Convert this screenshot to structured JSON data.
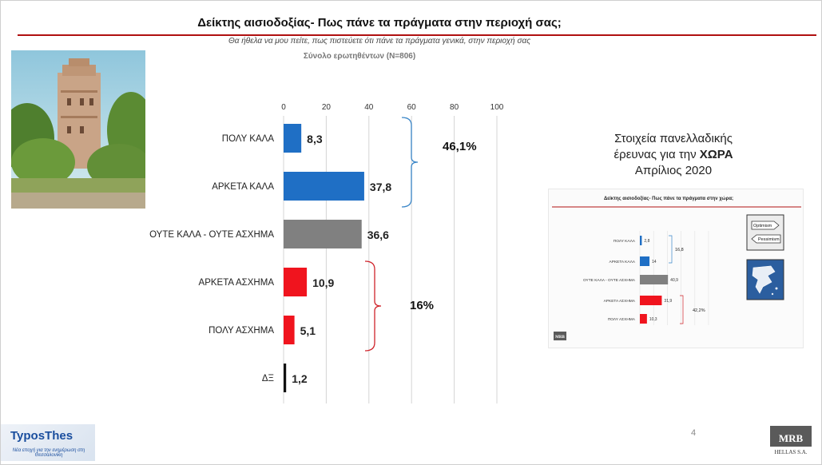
{
  "header": {
    "title": "Δείκτης αισιοδοξίας- Πως πάνε τα πράγματα στην περιοχή σας;",
    "subtitle": "Θα ήθελα να μου πείτε, πως πιστεύετε ότι πάνε τα πράγματα γενικά, στην περιοχή σας",
    "base": "Σύνολο ερωτηθέντων (Ν=806)"
  },
  "chart_data": {
    "type": "bar",
    "orientation": "horizontal",
    "xlim": [
      0,
      100
    ],
    "x_ticks": [
      0,
      20,
      40,
      60,
      80,
      100
    ],
    "categories": [
      "ΠΟΛΥ ΚΑΛΑ",
      "ΑΡΚΕΤΑ ΚΑΛΑ",
      "ΟΥΤΕ ΚΑΛΑ - ΟΥΤΕ ΑΣΧΗΜΑ",
      "ΑΡΚΕΤΑ ΑΣΧΗΜΑ",
      "ΠΟΛΥ ΑΣΧΗΜΑ",
      "ΔΞ"
    ],
    "values": [
      8.3,
      37.8,
      36.6,
      10.9,
      5.1,
      1.2
    ],
    "value_labels": [
      "8,3",
      "37,8",
      "36,6",
      "10,9",
      "5,1",
      "1,2"
    ],
    "colors": [
      "#1f6fc5",
      "#1f6fc5",
      "#808080",
      "#f0141e",
      "#f0141e",
      "#111111"
    ],
    "groups": [
      {
        "label": "46,1%",
        "from": 0,
        "to": 1,
        "color": "#3a86c8"
      },
      {
        "label": "16%",
        "from": 3,
        "to": 4,
        "color": "#d0242b"
      }
    ],
    "grid": true
  },
  "inset": {
    "title_line1": "Στοιχεία πανελλαδικής",
    "title_line2_prefix": "έρευνας για την ",
    "title_line2_bold": "ΧΩΡΑ",
    "title_line3": "Απρίλιος 2020",
    "chart": {
      "type": "bar",
      "orientation": "horizontal",
      "title": "Δείκτης αισιοδοξίας- Πως πάνε τα πράγματα στην χώρα;",
      "categories": [
        "ΠΟΛΥ ΚΑΛΑ",
        "ΑΡΚΕΤΑ ΚΑΛΑ",
        "ΟΥΤΕ ΚΑΛΑ - ΟΥΤΕ ΑΣΧΗΜΑ",
        "ΑΡΚΕΤΑ ΑΣΧΗΜΑ",
        "ΠΟΛΥ ΑΣΧΗΜΑ"
      ],
      "values": [
        2.8,
        14,
        40.9,
        31.9,
        10.3
      ],
      "value_labels": [
        "2,8",
        "14",
        "40,9",
        "31,9",
        "10,3"
      ],
      "colors": [
        "#1f6fc5",
        "#1f6fc5",
        "#808080",
        "#f0141e",
        "#f0141e"
      ],
      "groups": [
        {
          "label": "16,8",
          "from": 0,
          "to": 1
        },
        {
          "label": "42,2%",
          "from": 3,
          "to": 4
        }
      ],
      "sign_top": "Optimism",
      "sign_bottom": "Pessimism"
    }
  },
  "footer": {
    "page_number": "4",
    "left_brand": "TyposThes",
    "left_tagline": "Νέα εποχή για την ενημέρωση στη Θεσσαλονίκη",
    "right_brand": "MRB",
    "right_sub": "HELLAS S.A."
  },
  "colors": {
    "accent_rule": "#b01010",
    "blue": "#1f6fc5",
    "gray": "#808080",
    "red": "#f0141e"
  }
}
